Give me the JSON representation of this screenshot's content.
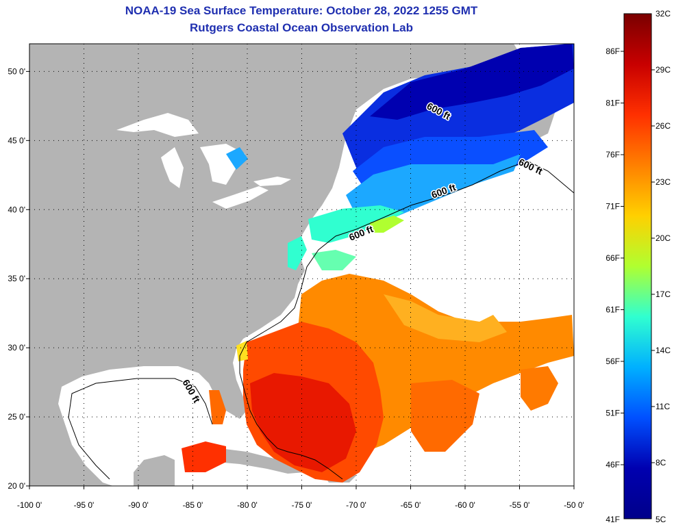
{
  "title": "NOAA-19 Sea Surface Temperature:  October 28, 2022 1255 GMT",
  "subtitle": "Rutgers Coastal Ocean Observation Lab",
  "map": {
    "lon_range": [
      -100,
      -50
    ],
    "lat_range": [
      20,
      52
    ],
    "x_ticks": [
      "-100 0'",
      "-95 0'",
      "-90 0'",
      "-85 0'",
      "-80 0'",
      "-75 0'",
      "-70 0'",
      "-65 0'",
      "-60 0'",
      "-55 0'",
      "-50 0'"
    ],
    "y_ticks": [
      "50 0'",
      "45 0'",
      "40 0'",
      "35 0'",
      "30 0'",
      "25 0'",
      "20 0'"
    ],
    "isobath_label": "600 ft",
    "colors": {
      "land": "#b4b4b4",
      "no_data": "#ffffff",
      "graticule": "#000000"
    }
  },
  "colorbar": {
    "fahrenheit": [
      "86F",
      "81F",
      "76F",
      "71F",
      "66F",
      "61F",
      "56F",
      "51F",
      "46F",
      "41F"
    ],
    "celsius": [
      "32C",
      "29C",
      "26C",
      "23C",
      "20C",
      "17C",
      "14C",
      "11C",
      "8C",
      "5C"
    ],
    "colors": [
      "#7a0000",
      "#c80000",
      "#ff3000",
      "#ff8000",
      "#ffd000",
      "#b0ff30",
      "#30ffd0",
      "#00b0ff",
      "#0050ff",
      "#0000b0",
      "#00008a"
    ]
  }
}
